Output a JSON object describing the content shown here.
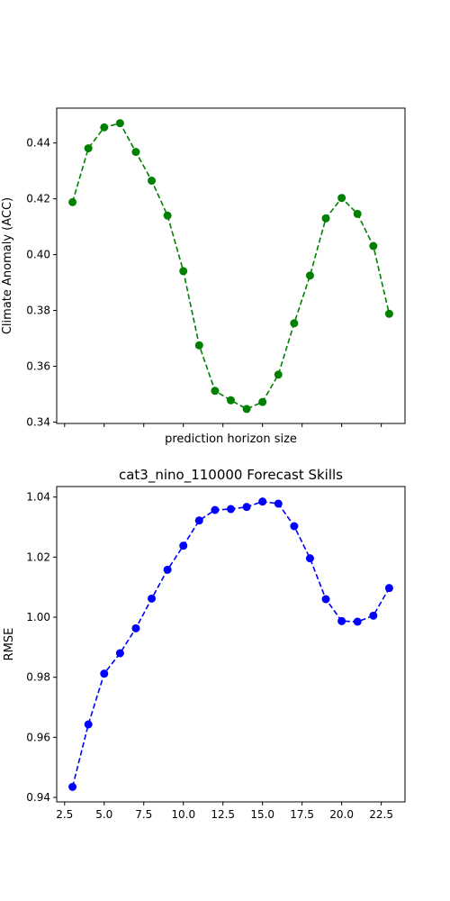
{
  "chart_data": [
    {
      "type": "line",
      "title": "",
      "xlabel": "prediction horizon size",
      "ylabel": "Climate Anomaly (ACC)",
      "xlim": [
        2,
        24
      ],
      "ylim": [
        0.3395,
        0.4525
      ],
      "yticks": [
        "0.34",
        "0.36",
        "0.38",
        "0.40",
        "0.42",
        "0.44"
      ],
      "xticks": [],
      "grid": false,
      "series": [
        {
          "color": "#008000",
          "marker": "circle",
          "linestyle": "dashed",
          "x": [
            3,
            4,
            5,
            6,
            7,
            8,
            9,
            10,
            11,
            12,
            13,
            14,
            15,
            16,
            17,
            18,
            19,
            20,
            21,
            22,
            23
          ],
          "y": [
            0.4188,
            0.4381,
            0.4456,
            0.4471,
            0.4368,
            0.4265,
            0.414,
            0.3941,
            0.3675,
            0.3512,
            0.3478,
            0.3447,
            0.3472,
            0.357,
            0.3754,
            0.3925,
            0.413,
            0.4203,
            0.4146,
            0.4031,
            0.3788
          ]
        }
      ]
    },
    {
      "type": "line",
      "title": "cat3_nino_110000 Forecast Skills",
      "xlabel": "",
      "ylabel": "RMSE",
      "xlim": [
        2,
        24
      ],
      "ylim": [
        0.9385,
        1.0435
      ],
      "yticks": [
        "0.94",
        "0.96",
        "0.98",
        "1.00",
        "1.02",
        "1.04"
      ],
      "xticks": [
        "2.5",
        "5.0",
        "7.5",
        "10.0",
        "12.5",
        "15.0",
        "17.5",
        "20.0",
        "22.5"
      ],
      "grid": false,
      "series": [
        {
          "color": "#0000ff",
          "marker": "circle",
          "linestyle": "dashed",
          "x": [
            3,
            4,
            5,
            6,
            7,
            8,
            9,
            10,
            11,
            12,
            13,
            14,
            15,
            16,
            17,
            18,
            19,
            20,
            21,
            22,
            23
          ],
          "y": [
            0.9435,
            0.9643,
            0.9812,
            0.988,
            0.9963,
            1.0062,
            1.0158,
            1.0238,
            1.0322,
            1.0357,
            1.036,
            1.0367,
            1.0385,
            1.0378,
            1.0303,
            1.0196,
            1.006,
            0.9987,
            0.9985,
            1.0005,
            1.0097
          ]
        }
      ]
    }
  ]
}
